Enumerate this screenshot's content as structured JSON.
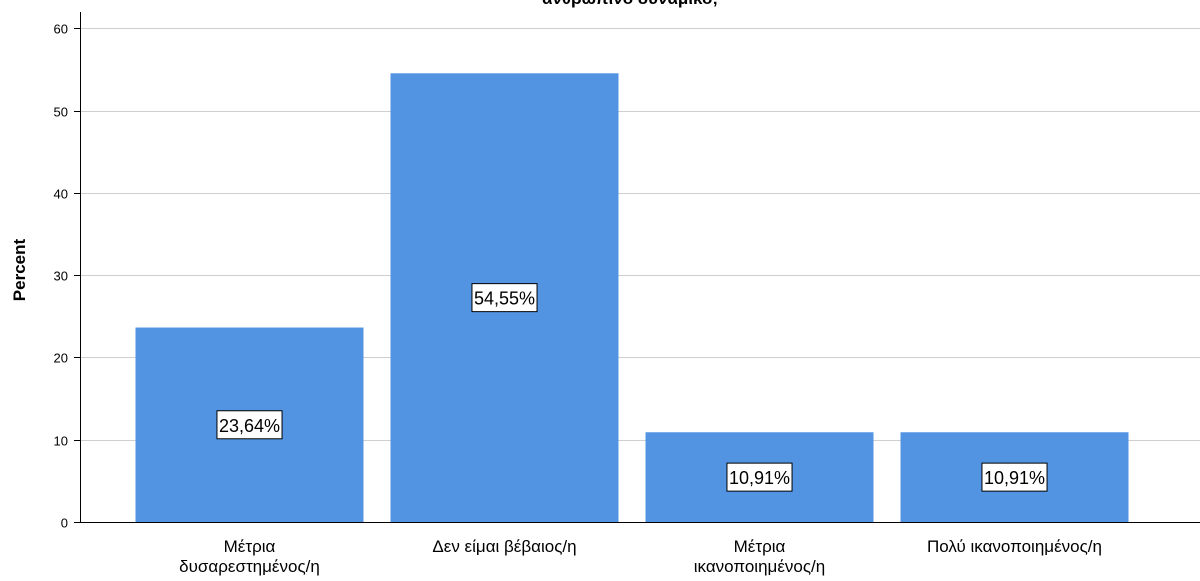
{
  "chart_data": {
    "type": "bar",
    "title": "ανθρώπινο δυναμικό;",
    "ylabel": "Percent",
    "xlabel": "",
    "categories": [
      [
        "Μέτρια",
        "δυσαρεστημένος/η"
      ],
      [
        "Δεν είμαι βέβαιος/η"
      ],
      [
        "Μέτρια",
        "ικανοποιημένος/η"
      ],
      [
        "Πολύ ικανοποιημένος/η"
      ]
    ],
    "values": [
      23.64,
      54.55,
      10.91,
      10.91
    ],
    "data_labels": [
      "23,64%",
      "54,55%",
      "10,91%",
      "10,91%"
    ],
    "ylim": [
      0,
      62
    ],
    "yticks": [
      0,
      10,
      20,
      30,
      40,
      50,
      60
    ],
    "grid": true,
    "colors": {
      "bar": "#5294e2",
      "grid": "#cfcfcf",
      "axis": "#000000"
    }
  }
}
